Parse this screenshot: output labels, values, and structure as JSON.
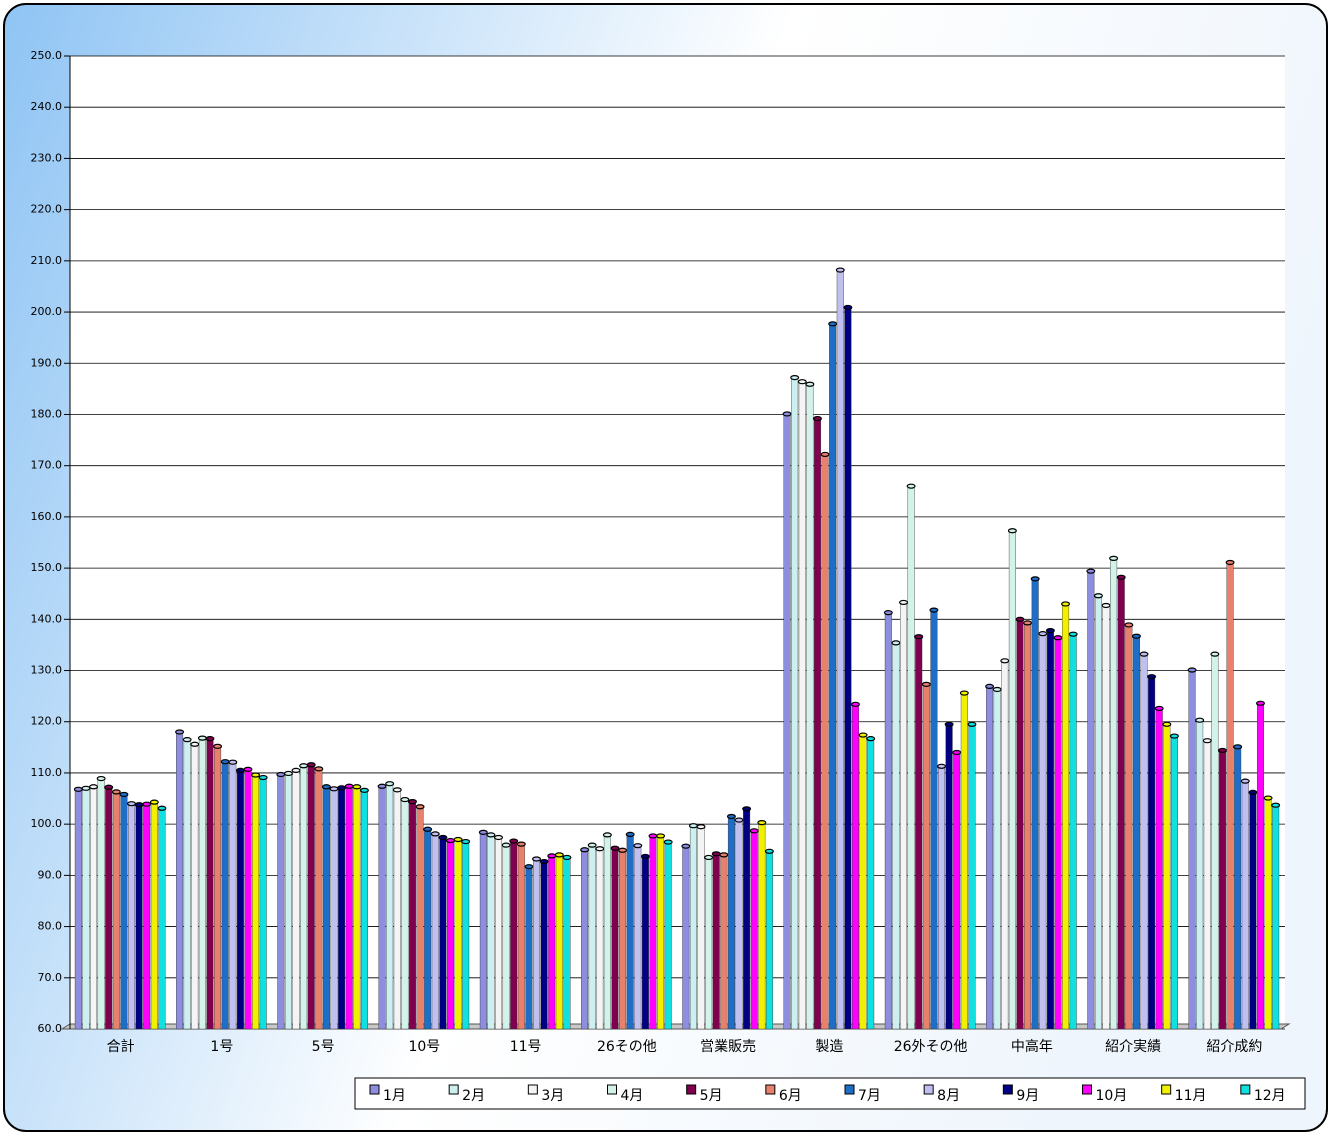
{
  "chart_data": {
    "type": "bar",
    "categories": [
      "合計",
      "1号",
      "5号",
      "10号",
      "11号",
      "26その他",
      "営業販売",
      "製造",
      "26外その他",
      "中高年",
      "紹介実績",
      "紹介成約"
    ],
    "series": [
      {
        "name": "1月",
        "color": "#8e8ee0",
        "values": [
          106.8,
          118.0,
          109.7,
          107.4,
          98.4,
          95.0,
          95.7,
          180.1,
          141.3,
          126.9,
          149.4,
          130.1
        ]
      },
      {
        "name": "2月",
        "color": "#ccefef",
        "values": [
          107.0,
          116.5,
          109.9,
          107.9,
          97.9,
          95.9,
          99.7,
          187.2,
          135.4,
          126.3,
          144.6,
          120.3
        ]
      },
      {
        "name": "3月",
        "color": "#f4f4f4",
        "values": [
          107.3,
          115.6,
          110.5,
          106.7,
          97.4,
          95.2,
          99.5,
          186.4,
          143.3,
          131.9,
          142.7,
          116.3
        ]
      },
      {
        "name": "4月",
        "color": "#d2f2ea",
        "values": [
          108.9,
          116.8,
          111.4,
          104.8,
          95.9,
          97.9,
          93.5,
          185.9,
          166.0,
          157.3,
          151.9,
          133.2
        ]
      },
      {
        "name": "5月",
        "color": "#800050",
        "values": [
          107.2,
          116.7,
          111.6,
          104.4,
          96.7,
          95.3,
          94.2,
          179.2,
          136.6,
          140.0,
          148.2,
          114.4
        ]
      },
      {
        "name": "6月",
        "color": "#e8806e",
        "values": [
          106.3,
          115.2,
          110.8,
          103.4,
          96.1,
          94.9,
          94.0,
          172.2,
          127.3,
          139.3,
          138.9,
          151.1
        ]
      },
      {
        "name": "7月",
        "color": "#1e6ec8",
        "values": [
          105.8,
          112.2,
          107.3,
          99.0,
          91.7,
          98.0,
          101.5,
          197.7,
          141.8,
          147.9,
          136.7,
          115.1
        ]
      },
      {
        "name": "8月",
        "color": "#c0c0f0",
        "values": [
          104.0,
          112.1,
          106.9,
          98.1,
          93.2,
          95.8,
          100.8,
          208.2,
          111.3,
          137.2,
          133.2,
          108.4
        ]
      },
      {
        "name": "9月",
        "color": "#000080",
        "values": [
          103.8,
          110.5,
          107.1,
          97.4,
          92.7,
          93.7,
          103.0,
          200.9,
          119.5,
          137.8,
          128.8,
          106.2
        ]
      },
      {
        "name": "10月",
        "color": "#ff00ff",
        "values": [
          103.9,
          110.7,
          107.4,
          96.8,
          93.8,
          97.7,
          98.7,
          123.4,
          114.0,
          136.4,
          122.6,
          123.6
        ]
      },
      {
        "name": "11月",
        "color": "#f0f000",
        "values": [
          104.3,
          109.6,
          107.3,
          97.0,
          94.0,
          97.7,
          100.3,
          117.4,
          125.6,
          143.0,
          119.5,
          105.1
        ]
      },
      {
        "name": "12月",
        "color": "#10e0e0",
        "values": [
          103.1,
          109.1,
          106.6,
          96.6,
          93.5,
          96.5,
          94.7,
          116.7,
          119.5,
          137.1,
          117.2,
          103.7
        ]
      }
    ],
    "ylim": [
      60,
      250
    ],
    "yticks": [
      {
        "value": 60,
        "label": "60.0"
      },
      {
        "value": 70,
        "label": "70.0"
      },
      {
        "value": 80,
        "label": "80.0"
      },
      {
        "value": 90,
        "label": "90.0"
      },
      {
        "value": 100,
        "label": "100.0"
      },
      {
        "value": 110,
        "label": "110.0"
      },
      {
        "value": 120,
        "label": "120.0"
      },
      {
        "value": 130,
        "label": "130.0"
      },
      {
        "value": 140,
        "label": "140.0"
      },
      {
        "value": 150,
        "label": "150.0"
      },
      {
        "value": 160,
        "label": "160.0"
      },
      {
        "value": 170,
        "label": "170.0"
      },
      {
        "value": 180,
        "label": "180.0"
      },
      {
        "value": 190,
        "label": "190.0"
      },
      {
        "value": 200,
        "label": "200.0"
      },
      {
        "value": 210,
        "label": "210.0"
      },
      {
        "value": 220,
        "label": "220.0"
      },
      {
        "value": 230,
        "label": "230.0"
      },
      {
        "value": 240,
        "label": "240.0"
      },
      {
        "value": 250,
        "label": "250.0"
      }
    ],
    "grid": true,
    "legend": "bottom"
  }
}
